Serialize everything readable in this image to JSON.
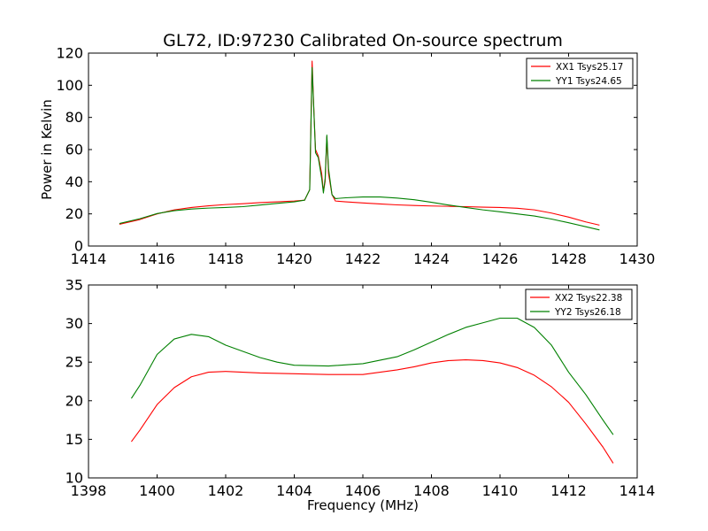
{
  "chart_data": [
    {
      "type": "line",
      "title": "GL72, ID:97230 Calibrated On-source spectrum",
      "xlabel": "",
      "ylabel": "Power in Kelvin",
      "xlim": [
        1414,
        1430
      ],
      "ylim": [
        0,
        120
      ],
      "xticks": [
        "1414",
        "1416",
        "1418",
        "1420",
        "1422",
        "1424",
        "1426",
        "1428",
        "1430"
      ],
      "yticks": [
        "0",
        "20",
        "40",
        "60",
        "80",
        "100",
        "120"
      ],
      "grid": false,
      "legend_position": "top-right",
      "series": [
        {
          "name": "XX1 Tsys25.17",
          "color": "#ff0000",
          "x": [
            1414.9,
            1415.5,
            1416.0,
            1416.5,
            1417.0,
            1417.5,
            1418.0,
            1418.5,
            1419.0,
            1419.5,
            1420.0,
            1420.3,
            1420.45,
            1420.52,
            1420.58,
            1420.62,
            1420.7,
            1420.8,
            1420.85,
            1420.9,
            1420.95,
            1421.0,
            1421.1,
            1421.2,
            1421.5,
            1422.0,
            1422.5,
            1423.0,
            1423.5,
            1424.0,
            1424.5,
            1425.0,
            1425.5,
            1426.0,
            1426.5,
            1427.0,
            1427.5,
            1428.0,
            1428.5,
            1428.9
          ],
          "values": [
            13.5,
            16.5,
            20.0,
            22.5,
            24.0,
            25.0,
            25.8,
            26.3,
            27.0,
            27.5,
            28.0,
            28.5,
            35.0,
            115.0,
            80.0,
            60.0,
            56.0,
            45.0,
            34.0,
            40.0,
            68.0,
            45.0,
            32.0,
            28.0,
            27.5,
            26.8,
            26.2,
            25.6,
            25.2,
            24.9,
            24.7,
            24.5,
            24.2,
            24.0,
            23.5,
            22.5,
            20.5,
            18.0,
            15.0,
            13.0
          ]
        },
        {
          "name": "YY1 Tsys24.65",
          "color": "#008000",
          "x": [
            1414.9,
            1415.5,
            1416.0,
            1416.5,
            1417.0,
            1417.5,
            1418.0,
            1418.5,
            1419.0,
            1419.5,
            1420.0,
            1420.3,
            1420.45,
            1420.52,
            1420.58,
            1420.62,
            1420.7,
            1420.8,
            1420.85,
            1420.9,
            1420.95,
            1421.0,
            1421.1,
            1421.2,
            1421.5,
            1422.0,
            1422.5,
            1423.0,
            1423.5,
            1424.0,
            1424.5,
            1425.0,
            1425.5,
            1426.0,
            1426.5,
            1427.0,
            1427.5,
            1428.0,
            1428.5,
            1428.9
          ],
          "values": [
            14.0,
            17.0,
            20.2,
            22.0,
            23.0,
            23.6,
            24.0,
            24.5,
            25.5,
            26.5,
            27.5,
            28.5,
            35.0,
            111.0,
            80.0,
            58.0,
            55.0,
            42.0,
            33.0,
            42.0,
            69.0,
            48.0,
            32.0,
            29.5,
            30.0,
            30.5,
            30.5,
            29.8,
            28.8,
            27.2,
            25.5,
            24.0,
            22.5,
            21.3,
            20.0,
            18.7,
            16.8,
            14.5,
            12.0,
            10.0
          ]
        }
      ]
    },
    {
      "type": "line",
      "title": "",
      "xlabel": "Frequency (MHz)",
      "ylabel": "",
      "xlim": [
        1398,
        1414
      ],
      "ylim": [
        10,
        35
      ],
      "xticks": [
        "1398",
        "1400",
        "1402",
        "1404",
        "1406",
        "1408",
        "1410",
        "1412",
        "1414"
      ],
      "yticks": [
        "10",
        "15",
        "20",
        "25",
        "30",
        "35"
      ],
      "grid": false,
      "legend_position": "top-right",
      "series": [
        {
          "name": "XX2 Tsys22.38",
          "color": "#ff0000",
          "x": [
            1399.25,
            1399.5,
            1400.0,
            1400.5,
            1401.0,
            1401.5,
            1402.0,
            1403.0,
            1404.0,
            1405.0,
            1406.0,
            1407.0,
            1407.5,
            1408.0,
            1408.5,
            1409.0,
            1409.5,
            1410.0,
            1410.5,
            1411.0,
            1411.5,
            1412.0,
            1412.5,
            1413.0,
            1413.3
          ],
          "values": [
            14.7,
            16.2,
            19.5,
            21.7,
            23.1,
            23.7,
            23.8,
            23.6,
            23.5,
            23.4,
            23.4,
            24.0,
            24.4,
            24.9,
            25.2,
            25.3,
            25.2,
            24.9,
            24.3,
            23.3,
            21.8,
            19.8,
            17.0,
            14.0,
            11.9
          ]
        },
        {
          "name": "YY2 Tsys26.18",
          "color": "#008000",
          "x": [
            1399.25,
            1399.5,
            1400.0,
            1400.5,
            1401.0,
            1401.5,
            1402.0,
            1402.5,
            1403.0,
            1403.5,
            1404.0,
            1405.0,
            1406.0,
            1407.0,
            1407.5,
            1408.0,
            1408.5,
            1409.0,
            1409.5,
            1410.0,
            1410.5,
            1411.0,
            1411.5,
            1412.0,
            1412.5,
            1413.0,
            1413.3
          ],
          "values": [
            20.3,
            22.0,
            26.0,
            28.0,
            28.6,
            28.3,
            27.2,
            26.4,
            25.6,
            25.0,
            24.6,
            24.5,
            24.8,
            25.7,
            26.6,
            27.6,
            28.6,
            29.5,
            30.1,
            30.7,
            30.7,
            29.5,
            27.2,
            23.7,
            20.8,
            17.5,
            15.6
          ]
        }
      ]
    }
  ]
}
